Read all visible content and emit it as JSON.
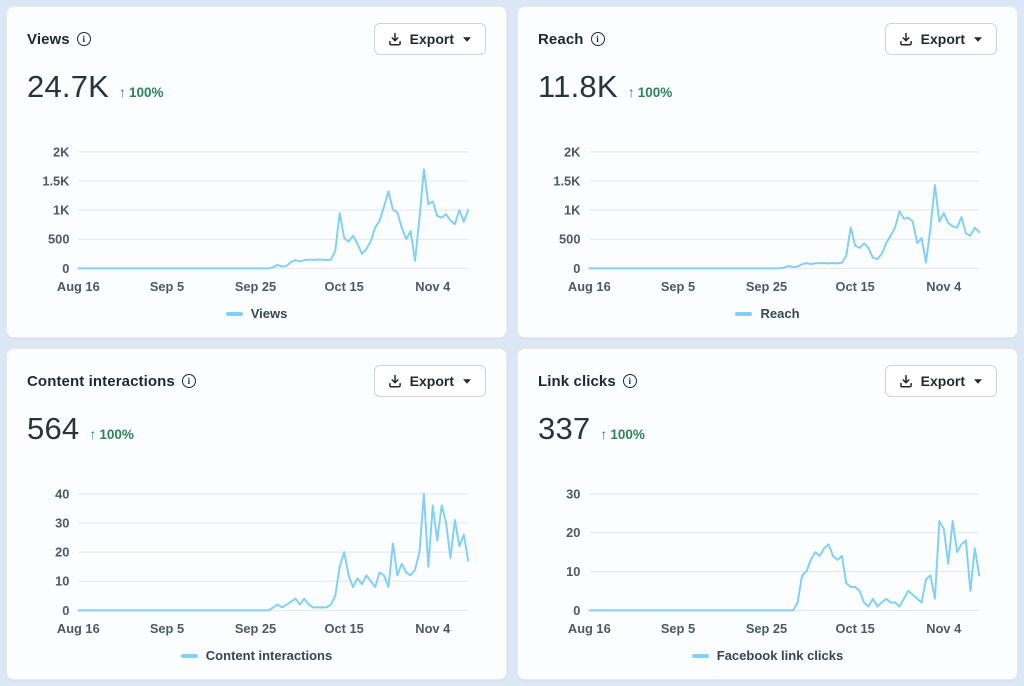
{
  "page": {
    "background": "#dce6f4"
  },
  "colors": {
    "line": "#7fd1f7",
    "grid": "#e4e6ea",
    "card_background": "#fcfdfe",
    "card_border": "#e7ebf1",
    "title_text": "#1c2b33",
    "metric_text": "#28343c",
    "delta_green": "#2b855a",
    "axis_text": "#4b5a66",
    "legend_text": "#344854"
  },
  "cards": [
    {
      "title": "Views",
      "metric": "24.7K",
      "delta": "100%",
      "export_label": "Export"
    },
    {
      "title": "Reach",
      "metric": "11.8K",
      "delta": "100%",
      "export_label": "Export"
    },
    {
      "title": "Content interactions",
      "metric": "564",
      "delta": "100%",
      "export_label": "Export"
    },
    {
      "title": "Link clicks",
      "metric": "337",
      "delta": "100%",
      "export_label": "Export"
    }
  ],
  "chart_data": [
    {
      "type": "line",
      "title": "Views",
      "x_domain": [
        0,
        88
      ],
      "x_tick_positions": [
        0,
        20,
        40,
        60,
        80
      ],
      "x_tick_labels": [
        "Aug 16",
        "Sep 5",
        "Sep 25",
        "Oct 15",
        "Nov 4"
      ],
      "ylim": [
        0,
        2000
      ],
      "y_ticks": [
        0,
        500,
        1000,
        1500,
        2000
      ],
      "y_tick_labels": [
        "0",
        "500",
        "1K",
        "1.5K",
        "2K"
      ],
      "grid": true,
      "legend_position": "bottom",
      "series": [
        {
          "name": "Views",
          "values": [
            0,
            0,
            0,
            0,
            0,
            0,
            0,
            0,
            0,
            0,
            0,
            0,
            0,
            0,
            0,
            0,
            0,
            0,
            0,
            0,
            0,
            0,
            0,
            0,
            0,
            0,
            0,
            0,
            0,
            0,
            0,
            0,
            0,
            0,
            0,
            0,
            0,
            0,
            0,
            0,
            0,
            0,
            0,
            0,
            20,
            60,
            30,
            40,
            110,
            140,
            120,
            140,
            150,
            145,
            150,
            150,
            140,
            150,
            300,
            950,
            520,
            460,
            560,
            420,
            250,
            330,
            470,
            700,
            820,
            1060,
            1320,
            1010,
            960,
            700,
            500,
            640,
            130,
            860,
            1700,
            1100,
            1150,
            900,
            870,
            930,
            820,
            760,
            1000,
            800,
            1000
          ]
        }
      ]
    },
    {
      "type": "line",
      "title": "Reach",
      "x_domain": [
        0,
        88
      ],
      "x_tick_positions": [
        0,
        20,
        40,
        60,
        80
      ],
      "x_tick_labels": [
        "Aug 16",
        "Sep 5",
        "Sep 25",
        "Oct 15",
        "Nov 4"
      ],
      "ylim": [
        0,
        2000
      ],
      "y_ticks": [
        0,
        500,
        1000,
        1500,
        2000
      ],
      "y_tick_labels": [
        "0",
        "500",
        "1K",
        "1.5K",
        "2K"
      ],
      "grid": true,
      "legend_position": "bottom",
      "series": [
        {
          "name": "Reach",
          "values": [
            0,
            0,
            0,
            0,
            0,
            0,
            0,
            0,
            0,
            0,
            0,
            0,
            0,
            0,
            0,
            0,
            0,
            0,
            0,
            0,
            0,
            0,
            0,
            0,
            0,
            0,
            0,
            0,
            0,
            0,
            0,
            0,
            0,
            0,
            0,
            0,
            0,
            0,
            0,
            0,
            0,
            0,
            0,
            0,
            15,
            40,
            20,
            30,
            70,
            90,
            75,
            85,
            90,
            90,
            85,
            90,
            85,
            95,
            220,
            700,
            390,
            350,
            430,
            350,
            180,
            160,
            250,
            430,
            560,
            700,
            980,
            850,
            870,
            800,
            430,
            520,
            100,
            700,
            1430,
            800,
            950,
            780,
            720,
            700,
            880,
            600,
            560,
            700,
            620
          ]
        }
      ]
    },
    {
      "type": "line",
      "title": "Content interactions",
      "x_domain": [
        0,
        88
      ],
      "x_tick_positions": [
        0,
        20,
        40,
        60,
        80
      ],
      "x_tick_labels": [
        "Aug 16",
        "Sep 5",
        "Sep 25",
        "Oct 15",
        "Nov 4"
      ],
      "ylim": [
        0,
        40
      ],
      "y_ticks": [
        0,
        10,
        20,
        30,
        40
      ],
      "y_tick_labels": [
        "0",
        "10",
        "20",
        "30",
        "40"
      ],
      "grid": true,
      "legend_position": "bottom",
      "series": [
        {
          "name": "Content interactions",
          "values": [
            0,
            0,
            0,
            0,
            0,
            0,
            0,
            0,
            0,
            0,
            0,
            0,
            0,
            0,
            0,
            0,
            0,
            0,
            0,
            0,
            0,
            0,
            0,
            0,
            0,
            0,
            0,
            0,
            0,
            0,
            0,
            0,
            0,
            0,
            0,
            0,
            0,
            0,
            0,
            0,
            0,
            0,
            0,
            0,
            1,
            2,
            1,
            2,
            3,
            4,
            2,
            4,
            2,
            1,
            1,
            1,
            1,
            2,
            5,
            15,
            20,
            12,
            8,
            11,
            9,
            12,
            10,
            8,
            13,
            12,
            8,
            23,
            12,
            16,
            13,
            12,
            14,
            20,
            40,
            15,
            36,
            24,
            36,
            30,
            18,
            31,
            22,
            26,
            17
          ]
        }
      ]
    },
    {
      "type": "line",
      "title": "Link clicks",
      "x_domain": [
        0,
        88
      ],
      "x_tick_positions": [
        0,
        20,
        40,
        60,
        80
      ],
      "x_tick_labels": [
        "Aug 16",
        "Sep 5",
        "Sep 25",
        "Oct 15",
        "Nov 4"
      ],
      "ylim": [
        0,
        30
      ],
      "y_ticks": [
        0,
        10,
        20,
        30
      ],
      "y_tick_labels": [
        "0",
        "10",
        "20",
        "30"
      ],
      "grid": true,
      "legend_position": "bottom",
      "series": [
        {
          "name": "Facebook link clicks",
          "values": [
            0,
            0,
            0,
            0,
            0,
            0,
            0,
            0,
            0,
            0,
            0,
            0,
            0,
            0,
            0,
            0,
            0,
            0,
            0,
            0,
            0,
            0,
            0,
            0,
            0,
            0,
            0,
            0,
            0,
            0,
            0,
            0,
            0,
            0,
            0,
            0,
            0,
            0,
            0,
            0,
            0,
            0,
            0,
            0,
            0,
            0,
            0,
            2,
            9,
            10,
            13,
            15,
            14,
            16,
            17,
            14,
            13,
            14,
            7,
            6,
            6,
            5,
            2,
            1,
            3,
            1,
            2,
            3,
            2,
            2,
            1,
            3,
            5,
            4,
            3,
            2,
            8,
            9,
            3,
            23,
            21,
            12,
            23,
            15,
            17,
            18,
            5,
            16,
            9
          ]
        }
      ]
    }
  ]
}
